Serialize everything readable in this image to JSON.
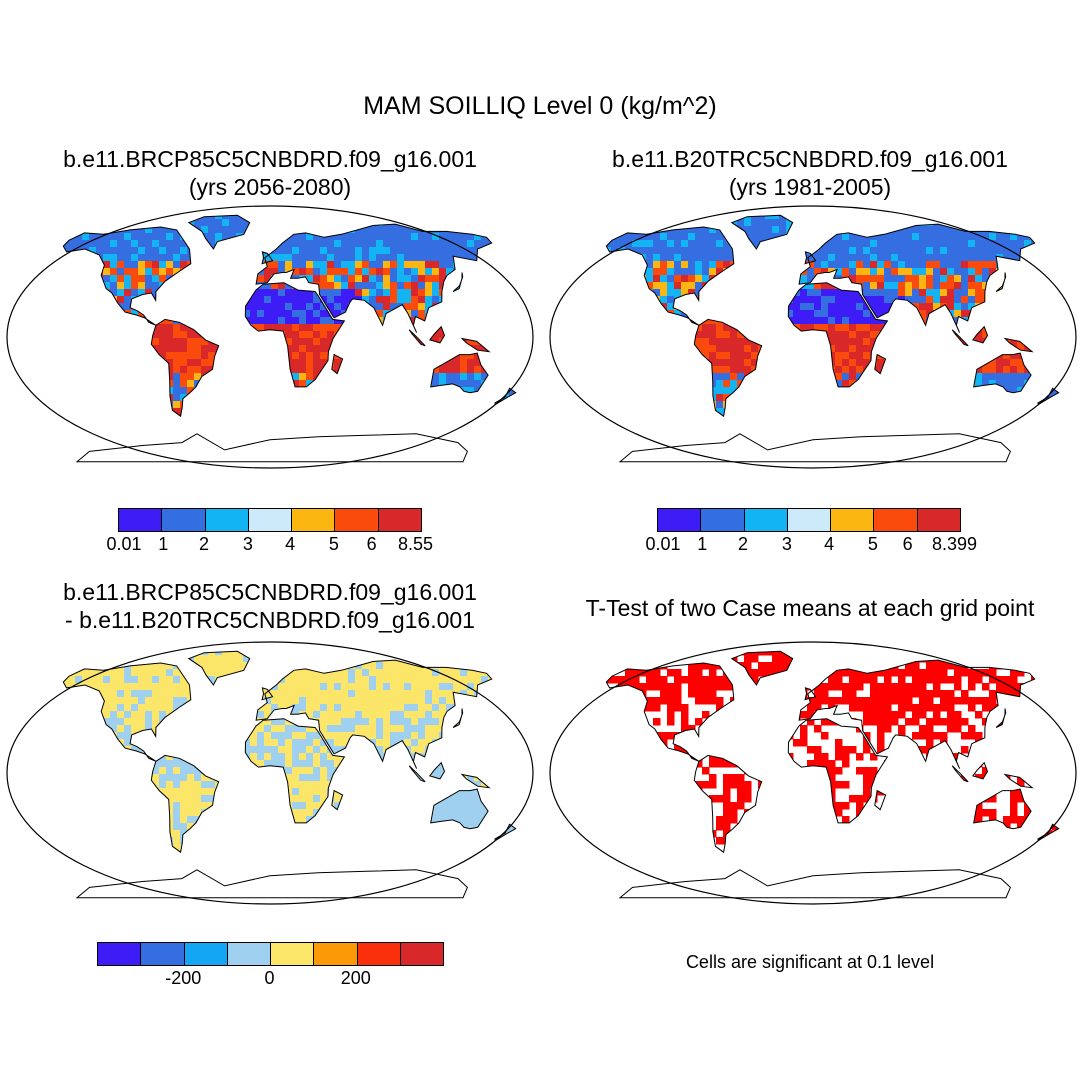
{
  "title": "MAM SOILLIQ Level 0 (kg/m^2)",
  "panels": [
    {
      "id": "p1",
      "title_line1": "b.e11.BRCP85C5CNBDRD.f09_g16.001",
      "title_line2": "(yrs 2056-2080)",
      "colorbar": {
        "colors": [
          "#3d1cf5",
          "#356ee0",
          "#12b4f4",
          "#cdeafa",
          "#fbb611",
          "#fa4a0c",
          "#d8282a"
        ],
        "labels": [
          "0.01",
          "1",
          "2",
          "3",
          "4",
          "5",
          "6",
          "8.55"
        ]
      }
    },
    {
      "id": "p2",
      "title_line1": "b.e11.B20TRC5CNBDRD.f09_g16.001",
      "title_line2": "(yrs 1981-2005)",
      "colorbar": {
        "colors": [
          "#3d1cf5",
          "#356ee0",
          "#12b4f4",
          "#cdeafa",
          "#fbb611",
          "#fa4a0c",
          "#d8282a"
        ],
        "labels": [
          "0.01",
          "1",
          "2",
          "3",
          "4",
          "5",
          "6",
          "8.399"
        ]
      }
    },
    {
      "id": "p3",
      "title_line1": "b.e11.BRCP85C5CNBDRD.f09_g16.001",
      "title_line2": "- b.e11.B20TRC5CNBDRD.f09_g16.001",
      "colorbar": {
        "colors": [
          "#3d1cf5",
          "#356ee0",
          "#12a6f4",
          "#9fd0ef",
          "#fbe66a",
          "#fb9a06",
          "#fa2f0c",
          "#d8282a"
        ],
        "labels": [
          "-200",
          "0",
          "200"
        ]
      }
    },
    {
      "id": "p4",
      "title_line1": "T-Test of two Case means at each grid point",
      "note": "Cells are significant at 0.1 level"
    }
  ]
}
